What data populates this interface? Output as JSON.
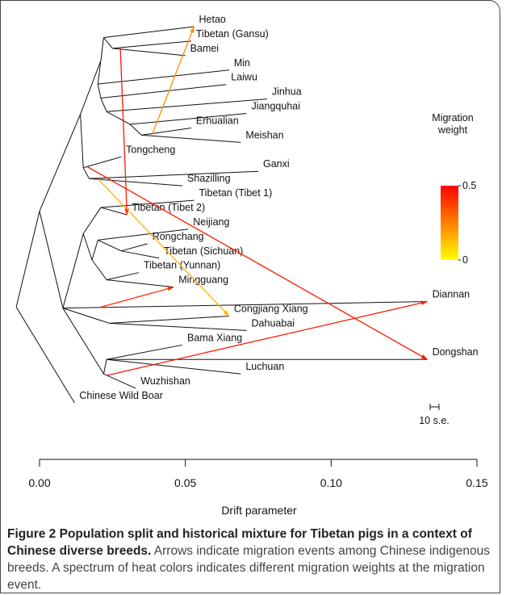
{
  "chart_data": {
    "type": "tree",
    "x_label": "Drift parameter",
    "xlim": [
      0,
      0.15
    ],
    "xticks": [
      {
        "value": 0,
        "label": "0.00"
      },
      {
        "value": 0.05,
        "label": "0.05"
      },
      {
        "value": 0.1,
        "label": "0.10"
      },
      {
        "value": 0.15,
        "label": "0.15"
      }
    ],
    "scale_bar_label": "10 s.e.",
    "legend": {
      "title": "Migration weight",
      "lim": [
        0,
        0.5
      ],
      "ticks": [
        0,
        0.5
      ]
    },
    "tree": {
      "x": -0.008,
      "children": [
        {
          "x": 0.0,
          "children": [
            {
              "x": 0.014,
              "children": [
                {
                  "x": 0.021,
                  "children": [
                    {
                      "x": 0.022,
                      "children": [
                        {
                          "name": "Hetao",
                          "x": 0.053
                        },
                        {
                          "x": 0.025,
                          "children": [
                            {
                              "name": "Tibetan (Gansu)",
                              "x": 0.052
                            },
                            {
                              "name": "Bamei",
                              "x": 0.05
                            }
                          ]
                        }
                      ]
                    },
                    {
                      "x": 0.02,
                      "children": [
                        {
                          "name": "Min",
                          "x": 0.065
                        },
                        {
                          "x": 0.021,
                          "children": [
                            {
                              "name": "Laiwu",
                              "x": 0.064
                            },
                            {
                              "x": 0.023,
                              "children": [
                                {
                                  "name": "Jinhua",
                                  "x": 0.078
                                },
                                {
                                  "x": 0.031,
                                  "children": [
                                    {
                                      "name": "Jiangquhai",
                                      "x": 0.071
                                    },
                                    {
                                      "x": 0.035,
                                      "children": [
                                        {
                                          "name": "Erhualian",
                                          "x": 0.052
                                        },
                                        {
                                          "name": "Meishan",
                                          "x": 0.069
                                        }
                                      ]
                                    }
                                  ]
                                }
                              ]
                            }
                          ]
                        }
                      ]
                    }
                  ]
                },
                {
                  "x": 0.015,
                  "children": [
                    {
                      "name": "Tongcheng",
                      "x": 0.028
                    },
                    {
                      "x": 0.017,
                      "children": [
                        {
                          "name": "Ganxi",
                          "x": 0.075
                        },
                        {
                          "name": "Shazilling",
                          "x": 0.049
                        }
                      ]
                    }
                  ]
                }
              ]
            },
            {
              "x": 0.008,
              "children": [
                {
                  "x": 0.015,
                  "children": [
                    {
                      "x": 0.021,
                      "children": [
                        {
                          "name": "Tibetan (Tibet 1)",
                          "x": 0.053
                        },
                        {
                          "name": "Tibetan (Tibet 2)",
                          "x": 0.03
                        }
                      ]
                    },
                    {
                      "x": 0.018,
                      "children": [
                        {
                          "x": 0.02,
                          "children": [
                            {
                              "name": "Neijiang",
                              "x": 0.051
                            },
                            {
                              "x": 0.028,
                              "children": [
                                {
                                  "name": "Rongchang",
                                  "x": 0.037
                                },
                                {
                                  "name": "Tibetan (Sichuan)",
                                  "x": 0.041
                                }
                              ]
                            }
                          ]
                        },
                        {
                          "x": 0.023,
                          "children": [
                            {
                              "name": "Tibetan (Yunnan)",
                              "x": 0.034
                            },
                            {
                              "name": "Mingguang",
                              "x": 0.046
                            }
                          ]
                        }
                      ]
                    }
                  ]
                },
                {
                  "name": "Diannan",
                  "x": 0.133
                },
                {
                  "x": 0.024,
                  "children": [
                    {
                      "name": "Congjiang Xiang",
                      "x": 0.065
                    },
                    {
                      "name": "Dahuabai",
                      "x": 0.071
                    }
                  ]
                },
                {
                  "x": 0.022,
                  "children": [
                    {
                      "x": 0.023,
                      "children": [
                        {
                          "name": "Bama Xiang",
                          "x": 0.049
                        },
                        {
                          "name": "Dongshan",
                          "x": 0.133
                        },
                        {
                          "name": "Luchuan",
                          "x": 0.069
                        }
                      ]
                    },
                    {
                      "name": "Wuzhishan",
                      "x": 0.033
                    }
                  ]
                }
              ]
            }
          ]
        },
        {
          "name": "Chinese Wild Boar",
          "x": 0.012
        }
      ]
    },
    "migrations": [
      {
        "source": "Meishan",
        "target": "Hetao",
        "weight": 0.2
      },
      {
        "source": "Tibetan (Gansu)",
        "target": "Tibetan (Tibet 2)",
        "weight": 0.45
      },
      {
        "source": "Tongcheng",
        "target": "Dongshan",
        "weight": 0.45
      },
      {
        "source": "Shazilling",
        "target": "Congjiang Xiang",
        "weight": 0.12
      },
      {
        "source": "Diannan",
        "target": "Mingguang",
        "weight": 0.4
      },
      {
        "source": "Wuzhishan",
        "target": "Diannan",
        "weight": 0.45
      }
    ]
  },
  "caption": {
    "label": "Figure 2",
    "title": "Population split and historical mixture for Tibetan pigs in a context of Chinese diverse breeds.",
    "text": "Arrows indicate migration events among Chinese indigenous breeds. A spectrum of heat colors indicates different migration weights at the migration event."
  }
}
